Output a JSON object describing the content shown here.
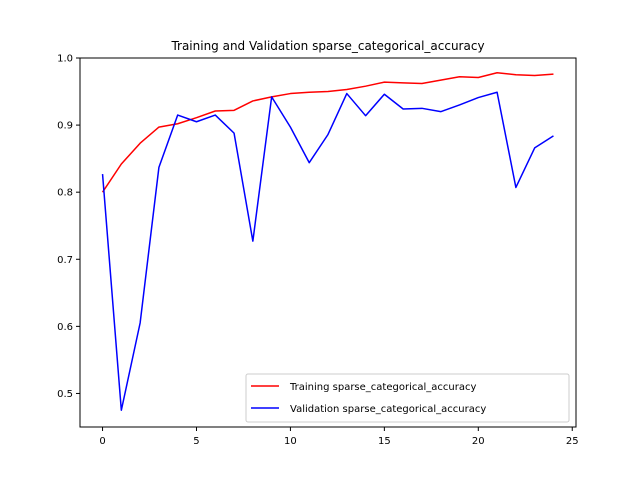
{
  "chart_data": {
    "type": "line",
    "title": "Training and Validation sparse_categorical_accuracy",
    "xlabel": "",
    "ylabel": "",
    "xlim": [
      -1.2,
      25.2
    ],
    "ylim": [
      0.45,
      1.0
    ],
    "xticks": [
      0,
      5,
      10,
      15,
      20,
      25
    ],
    "yticks": [
      0.5,
      0.6,
      0.7,
      0.8,
      0.9,
      1.0
    ],
    "xtick_labels": [
      "0",
      "5",
      "10",
      "15",
      "20",
      "25"
    ],
    "ytick_labels": [
      "0.5",
      "0.6",
      "0.7",
      "0.8",
      "0.9",
      "1.0"
    ],
    "grid": false,
    "legend_position": "lower-right",
    "x": [
      0,
      1,
      2,
      3,
      4,
      5,
      6,
      7,
      8,
      9,
      10,
      11,
      12,
      13,
      14,
      15,
      16,
      17,
      18,
      19,
      20,
      21,
      22,
      23,
      24
    ],
    "series": [
      {
        "name": "Training sparse_categorical_accuracy",
        "color": "#ff0000",
        "values": [
          0.8,
          0.842,
          0.873,
          0.897,
          0.902,
          0.911,
          0.921,
          0.922,
          0.936,
          0.942,
          0.947,
          0.949,
          0.95,
          0.953,
          0.958,
          0.964,
          0.963,
          0.962,
          0.967,
          0.972,
          0.971,
          0.978,
          0.975,
          0.974,
          0.976
        ]
      },
      {
        "name": "Validation sparse_categorical_accuracy",
        "color": "#0000ff",
        "values": [
          0.827,
          0.475,
          0.605,
          0.837,
          0.915,
          0.905,
          0.915,
          0.888,
          0.727,
          0.942,
          0.897,
          0.844,
          0.886,
          0.947,
          0.914,
          0.946,
          0.924,
          0.925,
          0.92,
          0.93,
          0.941,
          0.949,
          0.807,
          0.866,
          0.884
        ]
      }
    ]
  }
}
